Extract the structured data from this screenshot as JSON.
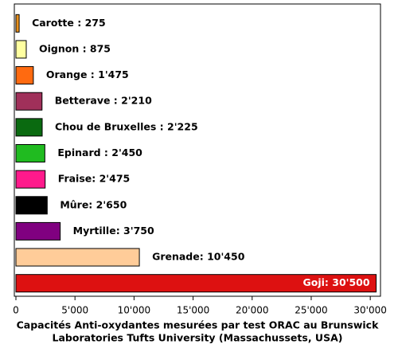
{
  "chart_data": {
    "type": "bar",
    "orientation": "horizontal",
    "title": [
      "Capacités Anti-oxydantes mesurées par test ORAC au Brunswick",
      "Laboratories Tufts University (Massachussets, USA)"
    ],
    "values": [
      275,
      875,
      1475,
      2210,
      2225,
      2450,
      2475,
      2650,
      3750,
      10450,
      30500
    ],
    "value_labels": [
      "Carotte : 275",
      "Oignon : 875",
      "Orange : 1'475",
      "Betterave : 2'210",
      "Chou de Bruxelles : 2'225",
      "Epinard : 2'450",
      "Fraise: 2'475",
      "Mûre: 2'650",
      "Myrtille: 3'750",
      "Grenade: 10'450",
      "Goji: 30'500"
    ],
    "colors": [
      "#e8901c",
      "#ffffa0",
      "#ff6a10",
      "#a0305a",
      "#0a6a10",
      "#20bb20",
      "#ff1a8c",
      "#000000",
      "#800080",
      "#ffcc99",
      "#dd1111"
    ],
    "xlim": [
      0,
      31000
    ],
    "xticks": [
      0,
      {
        "value": 5000,
        "label": "5'000"
      },
      {
        "value": 10000,
        "label": "10'000"
      },
      {
        "value": 15000,
        "label": "15'000"
      },
      {
        "value": 20000,
        "label": "20'000"
      },
      {
        "value": 25000,
        "label": "25'000"
      },
      {
        "value": 30000,
        "label": "30'000"
      }
    ]
  }
}
